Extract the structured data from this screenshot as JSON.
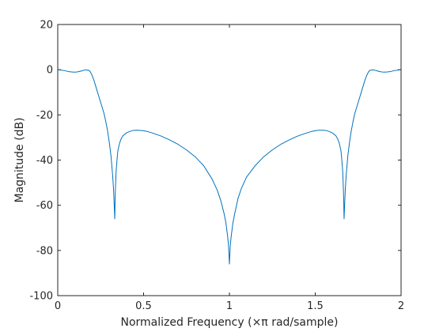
{
  "chart_data": {
    "type": "line",
    "title": "",
    "xlabel": "Normalized Frequency (×π rad/sample)",
    "ylabel": "Magnitude (dB)",
    "xlim": [
      0,
      2
    ],
    "ylim": [
      -100,
      20
    ],
    "xticks": [
      0,
      0.5,
      1,
      1.5,
      2
    ],
    "xtick_labels": [
      "0",
      "0.5",
      "1",
      "1.5",
      "2"
    ],
    "yticks": [
      20,
      0,
      -20,
      -40,
      -60,
      -80,
      -100
    ],
    "ytick_labels": [
      "20",
      "0",
      "-20",
      "-40",
      "-60",
      "-80",
      "-100"
    ],
    "grid": false,
    "box": true,
    "line_color": "#0072bd",
    "series": [
      {
        "name": "",
        "x": [
          0,
          0.02,
          0.04,
          0.06,
          0.08,
          0.1,
          0.12,
          0.14,
          0.16,
          0.18,
          0.19,
          0.2,
          0.21,
          0.22,
          0.23,
          0.24,
          0.25,
          0.26,
          0.27,
          0.28,
          0.29,
          0.3,
          0.31,
          0.32,
          0.325,
          0.33,
          0.332,
          0.333,
          0.334,
          0.336,
          0.34,
          0.345,
          0.35,
          0.36,
          0.37,
          0.38,
          0.4,
          0.42,
          0.44,
          0.46,
          0.48,
          0.5,
          0.52,
          0.55,
          0.6,
          0.65,
          0.7,
          0.75,
          0.8,
          0.85,
          0.9,
          0.93,
          0.95,
          0.97,
          0.98,
          0.99,
          0.995,
          1.0,
          1.005,
          1.01,
          1.02,
          1.03,
          1.05,
          1.07,
          1.1,
          1.15,
          1.2,
          1.25,
          1.3,
          1.35,
          1.4,
          1.45,
          1.48,
          1.5,
          1.52,
          1.54,
          1.56,
          1.58,
          1.6,
          1.62,
          1.63,
          1.64,
          1.65,
          1.655,
          1.66,
          1.664,
          1.666,
          1.667,
          1.668,
          1.67,
          1.675,
          1.68,
          1.69,
          1.7,
          1.71,
          1.72,
          1.73,
          1.74,
          1.75,
          1.76,
          1.77,
          1.78,
          1.79,
          1.8,
          1.81,
          1.82,
          1.84,
          1.86,
          1.88,
          1.9,
          1.92,
          1.94,
          1.96,
          1.98,
          2.0
        ],
        "y": [
          0,
          -0.2,
          -0.4,
          -0.8,
          -1.0,
          -1.1,
          -0.9,
          -0.5,
          -0.1,
          -0.2,
          -1.0,
          -2.5,
          -4.5,
          -7,
          -9.5,
          -12,
          -14.5,
          -17,
          -19.5,
          -23,
          -27,
          -32,
          -38,
          -47,
          -53,
          -62,
          -66,
          -63,
          -58,
          -53,
          -45,
          -40,
          -36,
          -32.5,
          -30.5,
          -29.2,
          -28,
          -27.3,
          -26.9,
          -26.8,
          -26.9,
          -27.0,
          -27.3,
          -28.0,
          -29.3,
          -31.0,
          -33.0,
          -35.5,
          -38.5,
          -42.5,
          -48.5,
          -53.5,
          -58,
          -64,
          -68,
          -74,
          -78,
          -86,
          -78,
          -74,
          -68,
          -64,
          -57,
          -52.5,
          -47.5,
          -42.5,
          -38.5,
          -35.5,
          -33,
          -31,
          -29.3,
          -28,
          -27.3,
          -27.0,
          -26.8,
          -26.8,
          -26.9,
          -27.3,
          -28,
          -29.2,
          -30.5,
          -32.5,
          -36,
          -40,
          -45,
          -53,
          -58,
          -63,
          -66,
          -62,
          -53,
          -47,
          -38,
          -32,
          -27,
          -23,
          -19.5,
          -17,
          -14.5,
          -12,
          -9.5,
          -7,
          -4.5,
          -2.5,
          -1.0,
          -0.2,
          -0.1,
          -0.5,
          -0.9,
          -1.1,
          -1.0,
          -0.8,
          -0.4,
          -0.2,
          0
        ]
      }
    ]
  }
}
